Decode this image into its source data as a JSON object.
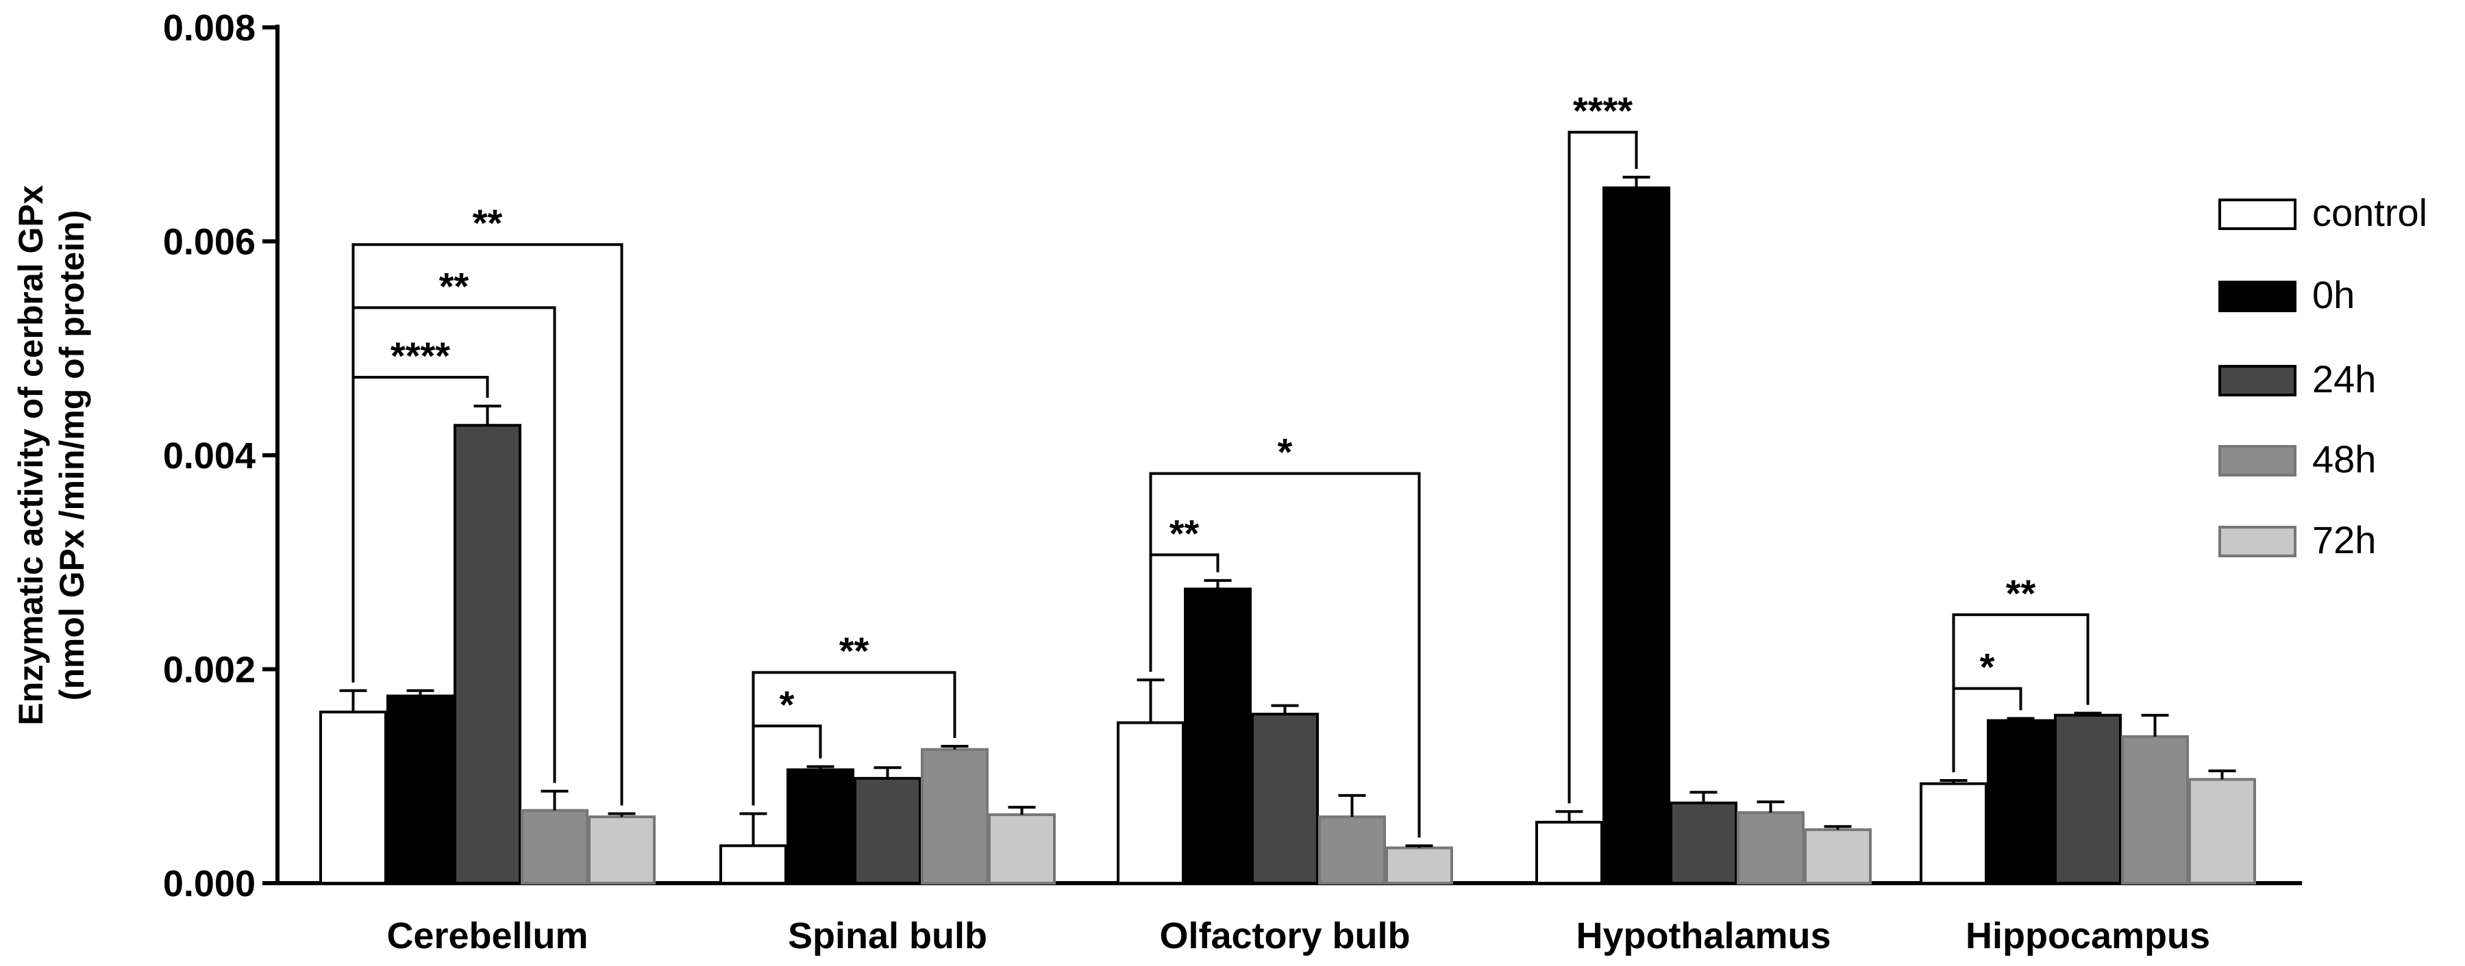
{
  "chart_data": {
    "type": "bar",
    "title": "",
    "xlabel": "",
    "ylabel": [
      "Enzymatic activity of cerbral GPx",
      "(nmol GPx /min/mg of protein)"
    ],
    "ylim": [
      0,
      0.008
    ],
    "yticks": [
      "0.000",
      "0.002",
      "0.004",
      "0.006",
      "0.008"
    ],
    "ytick_values": [
      0,
      0.002,
      0.004,
      0.006,
      0.008
    ],
    "categories": [
      "Cerebellum",
      "Spinal bulb",
      "Olfactory bulb",
      "Hypothalamus",
      "Hippocampus"
    ],
    "series": [
      {
        "name": "control",
        "color": "#ffffff",
        "values": [
          0.0016,
          0.00035,
          0.0015,
          0.00057,
          0.00093
        ],
        "errors": [
          0.0002,
          0.0003,
          0.0004,
          0.0001,
          3e-05
        ]
      },
      {
        "name": "0h",
        "color": "#000000",
        "values": [
          0.00175,
          0.00106,
          0.00275,
          0.0065,
          0.00152
        ],
        "errors": [
          5e-05,
          3e-05,
          8e-05,
          0.0001,
          2e-05
        ]
      },
      {
        "name": "24h",
        "color": "#474747",
        "values": [
          0.00428,
          0.00098,
          0.00158,
          0.00075,
          0.00157
        ],
        "errors": [
          0.00018,
          0.0001,
          8e-05,
          0.0001,
          2e-05
        ]
      },
      {
        "name": "48h",
        "color": "#8c8c8c",
        "values": [
          0.00068,
          0.00125,
          0.00062,
          0.00066,
          0.00137
        ],
        "errors": [
          0.00018,
          3e-05,
          0.0002,
          0.0001,
          0.0002
        ]
      },
      {
        "name": "72h",
        "color": "#c8c8c8",
        "values": [
          0.00062,
          0.00064,
          0.00033,
          0.0005,
          0.00097
        ],
        "errors": [
          3e-05,
          7e-05,
          2e-05,
          3e-05,
          8e-05
        ]
      }
    ],
    "significance": [
      {
        "category": 0,
        "from": 0,
        "to": 2,
        "y": 0.00473,
        "label": "****"
      },
      {
        "category": 0,
        "from": 0,
        "to": 3,
        "y": 0.00538,
        "label": "**"
      },
      {
        "category": 0,
        "from": 0,
        "to": 4,
        "y": 0.00597,
        "label": "**"
      },
      {
        "category": 1,
        "from": 0,
        "to": 1,
        "y": 0.00147,
        "label": "*"
      },
      {
        "category": 1,
        "from": 0,
        "to": 3,
        "y": 0.00197,
        "label": "**"
      },
      {
        "category": 2,
        "from": 0,
        "to": 1,
        "y": 0.00307,
        "label": "**"
      },
      {
        "category": 2,
        "from": 0,
        "to": 4,
        "y": 0.00383,
        "label": "*"
      },
      {
        "category": 3,
        "from": 0,
        "to": 1,
        "y": 0.00702,
        "label": "****"
      },
      {
        "category": 4,
        "from": 0,
        "to": 1,
        "y": 0.00182,
        "label": "*"
      },
      {
        "category": 4,
        "from": 0,
        "to": 2,
        "y": 0.00251,
        "label": "**"
      }
    ],
    "legend_position": "right",
    "grid": false
  }
}
